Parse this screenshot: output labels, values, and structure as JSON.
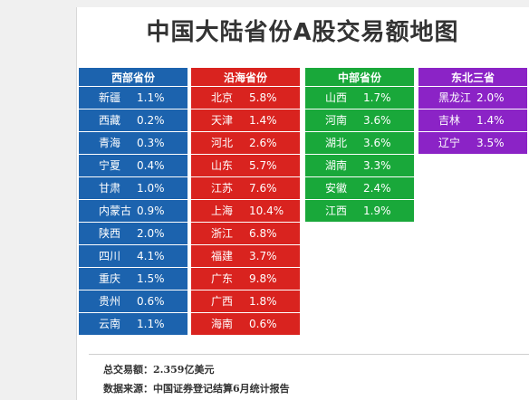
{
  "title": "中国大陆省份A股交易额地图",
  "regions": [
    {
      "header": "西部省份",
      "color": "#1c63ae",
      "rows": [
        {
          "name": "新疆",
          "pct": "1.1%"
        },
        {
          "name": "西藏",
          "pct": "0.2%"
        },
        {
          "name": "青海",
          "pct": "0.3%"
        },
        {
          "name": "宁夏",
          "pct": "0.4%"
        },
        {
          "name": "甘肃",
          "pct": "1.0%"
        },
        {
          "name": "内蒙古",
          "pct": "0.9%"
        },
        {
          "name": "陕西",
          "pct": "2.0%"
        },
        {
          "name": "四川",
          "pct": "4.1%"
        },
        {
          "name": "重庆",
          "pct": "1.5%"
        },
        {
          "name": "贵州",
          "pct": "0.6%"
        },
        {
          "name": "云南",
          "pct": "1.1%"
        }
      ]
    },
    {
      "header": "沿海省份",
      "color": "#d9231f",
      "rows": [
        {
          "name": "北京",
          "pct": "5.8%"
        },
        {
          "name": "天津",
          "pct": "1.4%"
        },
        {
          "name": "河北",
          "pct": "2.6%"
        },
        {
          "name": "山东",
          "pct": "5.7%"
        },
        {
          "name": "江苏",
          "pct": "7.6%"
        },
        {
          "name": "上海",
          "pct": "10.4%"
        },
        {
          "name": "浙江",
          "pct": "6.8%"
        },
        {
          "name": "福建",
          "pct": "3.7%"
        },
        {
          "name": "广东",
          "pct": "9.8%"
        },
        {
          "name": "广西",
          "pct": "1.8%"
        },
        {
          "name": "海南",
          "pct": "0.6%"
        }
      ]
    },
    {
      "header": "中部省份",
      "color": "#19a83a",
      "rows": [
        {
          "name": "山西",
          "pct": "1.7%"
        },
        {
          "name": "河南",
          "pct": "3.6%"
        },
        {
          "name": "湖北",
          "pct": "3.6%"
        },
        {
          "name": "湖南",
          "pct": "3.3%"
        },
        {
          "name": "安徽",
          "pct": "2.4%"
        },
        {
          "name": "江西",
          "pct": "1.9%"
        }
      ]
    },
    {
      "header": "东北三省",
      "color": "#8b23c6",
      "rows": [
        {
          "name": "黑龙江",
          "pct": "2.0%"
        },
        {
          "name": "吉林",
          "pct": "1.4%"
        },
        {
          "name": "辽宁",
          "pct": "3.5%"
        }
      ]
    }
  ],
  "footer": {
    "total_line": "总交易额：2.359亿美元",
    "source_line": "数据来源：中国证券登记结算6月统计报告"
  }
}
